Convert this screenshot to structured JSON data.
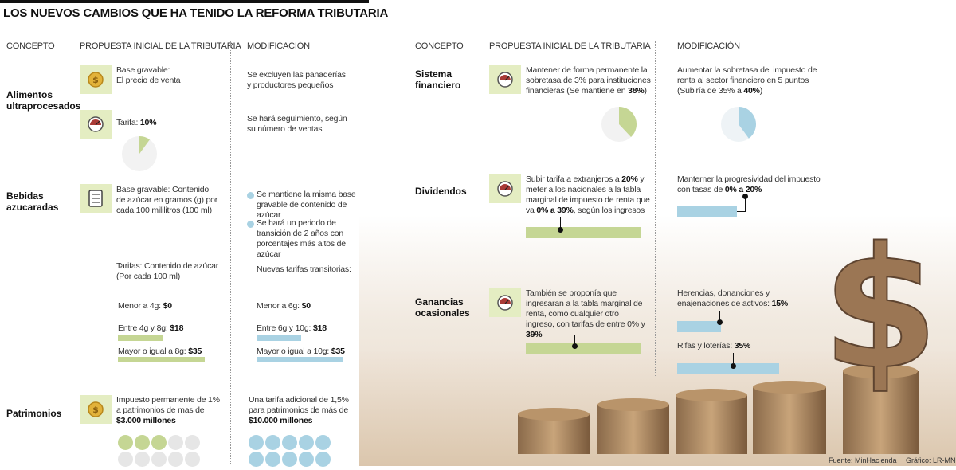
{
  "title": "LOS NUEVOS CAMBIOS QUE HA TENIDO LA REFORMA TRIBUTARIA",
  "headers": {
    "concept": "CONCEPTO",
    "initial": "PROPUESTA INICIAL DE LA TRIBUTARIA",
    "modification": "MODIFICACIÓN"
  },
  "alimentos": {
    "concept": "Alimentos ultraprocesados",
    "base_label": "Base gravable:",
    "base_value": "El precio de venta",
    "tarifa_label": "Tarifa:",
    "tarifa_value": "10%",
    "tarifa_fraction": 0.1,
    "mod_1": "Se excluyen las panaderías y productores pequeños",
    "mod_2": "Se hará seguimiento, según su número de ventas"
  },
  "bebidas": {
    "concept": "Bebidas azucaradas",
    "base_text": "Base gravable: Contenido de azúcar en gramos (g) por cada 100 mililitros (100 ml)",
    "tarifas_text": "Tarifas: Contenido de azúcar (Por cada 100 ml)",
    "initial_tiers": [
      {
        "label": "Menor a 4g:",
        "value": "$0"
      },
      {
        "label": "Entre 4g y 8g:",
        "value": "$18"
      },
      {
        "label": "Mayor o igual a 8g:",
        "value": "$35"
      }
    ],
    "mod_bullet_1": "Se mantiene la misma base gravable de contenido de azúcar",
    "mod_bullet_2": "Se hará un periodo de transición de 2 años con porcentajes más altos de azúcar",
    "mod_tarifas": "Nuevas tarifas transitorias:",
    "mod_tiers": [
      {
        "label": "Menor a 6g:",
        "value": "$0"
      },
      {
        "label": "Entre 6g y 10g:",
        "value": "$18"
      },
      {
        "label": "Mayor o igual a 10g:",
        "value": "$35"
      }
    ]
  },
  "patrimonios": {
    "concept": "Patrimonios",
    "initial_pre": "Impuesto permanente de 1% a patrimonios de mas de",
    "initial_bold": "$3.000 millones",
    "mod_pre": "Una tarifa adicional de 1,5% para patrimonios de más de",
    "mod_bold": "$10.000 millones",
    "initial_circles_filled": 3,
    "initial_circles_total": 10,
    "mod_circles_total": 10
  },
  "financiero": {
    "concept": "Sistema financiero",
    "initial_pre": "Mantener de forma permanente la sobretasa de 3% para instituciones financieras (Se mantiene en",
    "initial_bold": "38%",
    "initial_post": ")",
    "initial_fraction": 0.38,
    "mod_pre": "Aumentar la sobretasa del impuesto de renta al sector financiero en 5 puntos (Subiría de 35% a",
    "mod_bold": "40%",
    "mod_post": ")",
    "mod_fraction": 0.4
  },
  "dividendos": {
    "concept": "Dividendos",
    "initial_a": "Subir tarifa a extranjeros a",
    "initial_b": "20%",
    "initial_c": "y meter a los nacionales a la tabla marginal de impuesto de renta que va",
    "initial_d": "0% a 39%",
    "initial_e": ", según los ingresos",
    "mod_pre": "Manterner la progresividad del impuesto con tasas de",
    "mod_bold": "0% a 20%"
  },
  "ganancias": {
    "concept": "Ganancias ocasionales",
    "initial_pre": "También se proponía que ingresaran a la tabla marginal de renta, como cualquier otro ingreso, con tarifas de entre 0% y",
    "initial_bold": "39%",
    "mod_1_pre": "Herencias, donanciones y enajenaciones de activos:",
    "mod_1_bold": "15%",
    "mod_2_pre": "Rifas y loterías:",
    "mod_2_bold": "35%"
  },
  "footer": {
    "source": "Fuente: MinHacienda",
    "graphic": "Gráfico: LR-MN"
  },
  "colors": {
    "green": "#c5d694",
    "blue": "#a9d2e3",
    "iconbg": "#e4edc2",
    "coin": "#e2b23a",
    "gauge": "#a93a36"
  }
}
